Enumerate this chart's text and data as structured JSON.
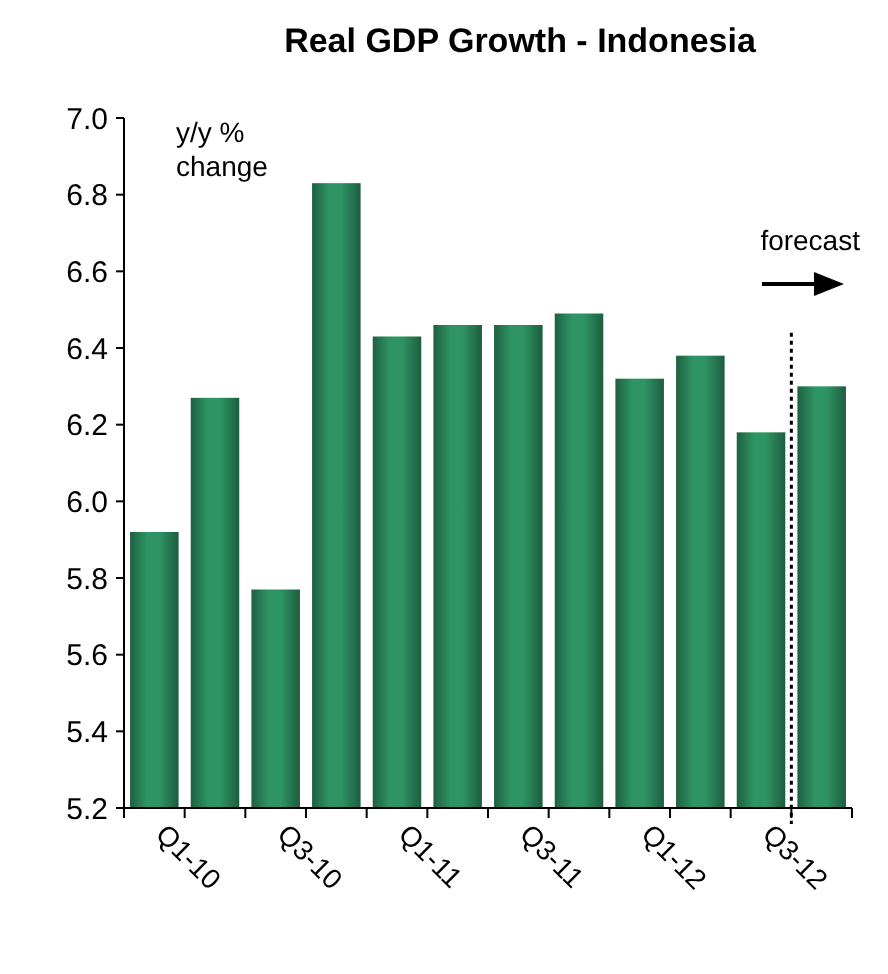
{
  "chart_data": {
    "type": "bar",
    "title": "Real GDP Growth - Indonesia",
    "ylabel": "y/y % change",
    "categories": [
      "Q1-10",
      null,
      "Q3-10",
      null,
      "Q1-11",
      null,
      "Q3-11",
      null,
      "Q1-12",
      null,
      "Q3-12",
      null
    ],
    "values": [
      5.92,
      6.27,
      5.77,
      6.83,
      6.43,
      6.46,
      6.46,
      6.49,
      6.32,
      6.38,
      6.18,
      6.3
    ],
    "color": "#2e9464",
    "ylim": [
      5.2,
      7.0
    ],
    "yticks": [
      {
        "value": 5.2,
        "label": "5.2"
      },
      {
        "value": 5.4,
        "label": "5.4"
      },
      {
        "value": 5.6,
        "label": "5.6"
      },
      {
        "value": 5.8,
        "label": "5.8"
      },
      {
        "value": 6.0,
        "label": "6.0"
      },
      {
        "value": 6.2,
        "label": "6.2"
      },
      {
        "value": 6.4,
        "label": "6.4"
      },
      {
        "value": 6.6,
        "label": "6.6"
      },
      {
        "value": 6.8,
        "label": "6.8"
      },
      {
        "value": 7.0,
        "label": "7.0"
      }
    ],
    "annotations": [
      "forecast"
    ],
    "grid": false
  }
}
